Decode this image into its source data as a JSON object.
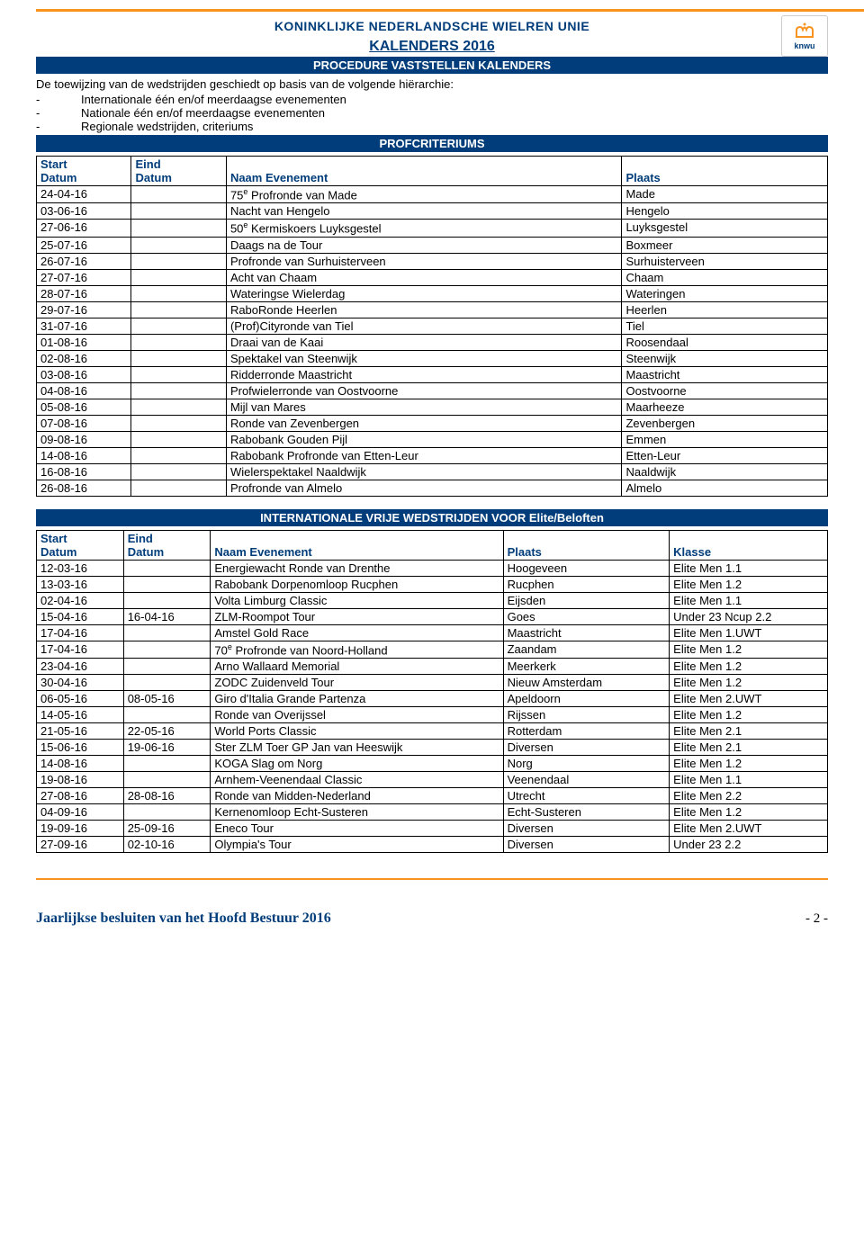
{
  "header": {
    "org": "KONINKLIJKE NEDERLANDSCHE WIELREN UNIE",
    "logo_text": "knwu",
    "logo_color": "#f7931e",
    "logo_text_color": "#003d7a"
  },
  "page": {
    "title": "KALENDERS 2016",
    "bar1": "PROCEDURE VASTSTELLEN KALENDERS",
    "intro": "De toewijzing van de wedstrijden geschiedt op basis van de volgende hiërarchie:",
    "hierarchy": [
      "Internationale één en/of meerdaagse evenementen",
      "Nationale één en/of meerdaagse evenementen",
      "Regionale wedstrijden, criteriums"
    ],
    "bar2": "PROFCRITERIUMS",
    "bar3": "INTERNATIONALE VRIJE WEDSTRIJDEN VOOR Elite/Beloften"
  },
  "table1": {
    "headers": {
      "start1": "Start",
      "start2": "Datum",
      "eind1": "Eind",
      "eind2": "Datum",
      "naam": "Naam Evenement",
      "plaats": "Plaats"
    },
    "col_widths": [
      "12%",
      "12%",
      "50%",
      "26%"
    ],
    "rows": [
      {
        "s": "24-04-16",
        "e": "",
        "n": "75ᵉ Profronde van Made",
        "p": "Made"
      },
      {
        "s": "03-06-16",
        "e": "",
        "n": "Nacht van Hengelo",
        "p": "Hengelo"
      },
      {
        "s": "27-06-16",
        "e": "",
        "n": "50ᵉ Kermiskoers Luyksgestel",
        "p": "Luyksgestel"
      },
      {
        "s": "25-07-16",
        "e": "",
        "n": "Daags na de Tour",
        "p": "Boxmeer"
      },
      {
        "s": "26-07-16",
        "e": "",
        "n": "Profronde van Surhuisterveen",
        "p": "Surhuisterveen"
      },
      {
        "s": "27-07-16",
        "e": "",
        "n": "Acht van Chaam",
        "p": "Chaam"
      },
      {
        "s": "28-07-16",
        "e": "",
        "n": "Wateringse Wielerdag",
        "p": "Wateringen"
      },
      {
        "s": "29-07-16",
        "e": "",
        "n": "RaboRonde Heerlen",
        "p": "Heerlen"
      },
      {
        "s": "31-07-16",
        "e": "",
        "n": "(Prof)Cityronde van Tiel",
        "p": "Tiel"
      },
      {
        "s": "01-08-16",
        "e": "",
        "n": "Draai van de Kaai",
        "p": "Roosendaal"
      },
      {
        "s": "02-08-16",
        "e": "",
        "n": "Spektakel van Steenwijk",
        "p": "Steenwijk"
      },
      {
        "s": "03-08-16",
        "e": "",
        "n": "Ridderronde Maastricht",
        "p": "Maastricht"
      },
      {
        "s": "04-08-16",
        "e": "",
        "n": "Profwielerronde van Oostvoorne",
        "p": "Oostvoorne"
      },
      {
        "s": "05-08-16",
        "e": "",
        "n": "Mijl van Mares",
        "p": "Maarheeze"
      },
      {
        "s": "07-08-16",
        "e": "",
        "n": "Ronde van Zevenbergen",
        "p": "Zevenbergen"
      },
      {
        "s": "09-08-16",
        "e": "",
        "n": "Rabobank Gouden Pijl",
        "p": "Emmen"
      },
      {
        "s": "14-08-16",
        "e": "",
        "n": "Rabobank Profronde van Etten-Leur",
        "p": "Etten-Leur"
      },
      {
        "s": "16-08-16",
        "e": "",
        "n": "Wielerspektakel Naaldwijk",
        "p": "Naaldwijk"
      },
      {
        "s": "26-08-16",
        "e": "",
        "n": "Profronde van Almelo",
        "p": "Almelo"
      }
    ]
  },
  "table2": {
    "headers": {
      "start1": "Start",
      "start2": "Datum",
      "eind1": "Eind",
      "eind2": "Datum",
      "naam": "Naam Evenement",
      "plaats": "Plaats",
      "klasse": "Klasse"
    },
    "col_widths": [
      "11%",
      "11%",
      "37%",
      "21%",
      "20%"
    ],
    "rows": [
      {
        "s": "12-03-16",
        "e": "",
        "n": "Energiewacht Ronde van Drenthe",
        "p": "Hoogeveen",
        "k": "Elite Men 1.1"
      },
      {
        "s": "13-03-16",
        "e": "",
        "n": "Rabobank Dorpenomloop Rucphen",
        "p": "Rucphen",
        "k": "Elite Men 1.2"
      },
      {
        "s": "02-04-16",
        "e": "",
        "n": "Volta Limburg Classic",
        "p": "Eijsden",
        "k": "Elite Men 1.1"
      },
      {
        "s": "15-04-16",
        "e": "16-04-16",
        "n": "ZLM-Roompot Tour",
        "p": "Goes",
        "k": "Under 23 Ncup 2.2"
      },
      {
        "s": "17-04-16",
        "e": "",
        "n": "Amstel Gold Race",
        "p": "Maastricht",
        "k": "Elite Men 1.UWT"
      },
      {
        "s": "17-04-16",
        "e": "",
        "n": "70ᵉ Profronde van Noord-Holland",
        "p": "Zaandam",
        "k": "Elite Men 1.2"
      },
      {
        "s": "23-04-16",
        "e": "",
        "n": "Arno Wallaard Memorial",
        "p": "Meerkerk",
        "k": "Elite Men 1.2"
      },
      {
        "s": "30-04-16",
        "e": "",
        "n": "ZODC Zuidenveld Tour",
        "p": "Nieuw Amsterdam",
        "k": "Elite Men 1.2"
      },
      {
        "s": "06-05-16",
        "e": "08-05-16",
        "n": "Giro d'Italia Grande Partenza",
        "p": "Apeldoorn",
        "k": "Elite Men 2.UWT"
      },
      {
        "s": "14-05-16",
        "e": "",
        "n": "Ronde van Overijssel",
        "p": "Rijssen",
        "k": "Elite Men 1.2"
      },
      {
        "s": "21-05-16",
        "e": "22-05-16",
        "n": "World Ports Classic",
        "p": "Rotterdam",
        "k": "Elite Men 2.1"
      },
      {
        "s": "15-06-16",
        "e": "19-06-16",
        "n": "Ster ZLM Toer GP Jan van Heeswijk",
        "p": "Diversen",
        "k": "Elite Men 2.1"
      },
      {
        "s": "14-08-16",
        "e": "",
        "n": "KOGA Slag om Norg",
        "p": "Norg",
        "k": "Elite Men 1.2"
      },
      {
        "s": "19-08-16",
        "e": "",
        "n": "Arnhem-Veenendaal Classic",
        "p": "Veenendaal",
        "k": "Elite Men 1.1"
      },
      {
        "s": "27-08-16",
        "e": "28-08-16",
        "n": "Ronde van Midden-Nederland",
        "p": "Utrecht",
        "k": "Elite Men 2.2"
      },
      {
        "s": "04-09-16",
        "e": "",
        "n": "Kernenomloop Echt-Susteren",
        "p": "Echt-Susteren",
        "k": "Elite Men 1.2"
      },
      {
        "s": "19-09-16",
        "e": "25-09-16",
        "n": "Eneco Tour",
        "p": "Diversen",
        "k": "Elite Men 2.UWT"
      },
      {
        "s": "27-09-16",
        "e": "02-10-16",
        "n": "Olympia's Tour",
        "p": "Diversen",
        "k": "Under 23  2.2"
      }
    ]
  },
  "footer": {
    "left": "Jaarlijkse besluiten van het Hoofd Bestuur 2016",
    "right": "- 2 -"
  },
  "colors": {
    "primary": "#003d7a",
    "accent": "#f7931e",
    "text": "#000000",
    "bg": "#ffffff",
    "border": "#000000"
  }
}
